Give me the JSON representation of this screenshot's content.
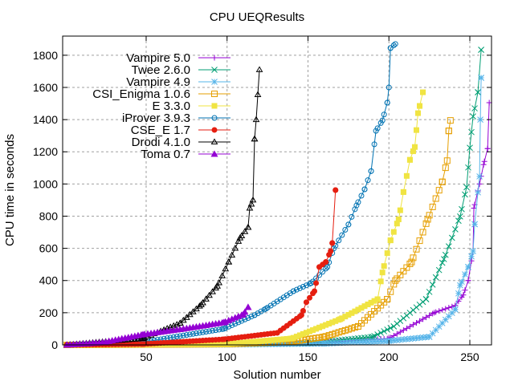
{
  "chart_data": {
    "type": "line",
    "title": "CPU UEQResults",
    "xlabel": "Solution number",
    "ylabel": "CPU time in seconds",
    "xlim": [
      -1.6,
      263.4
    ],
    "ylim": [
      0,
      1919
    ],
    "xticks": [
      50,
      100,
      150,
      200,
      250
    ],
    "yticks": [
      0,
      200,
      400,
      600,
      800,
      1000,
      1200,
      1400,
      1600,
      1800
    ],
    "grid": true,
    "legend_position": "top-left",
    "series": [
      {
        "name": "Vampire 5.0",
        "color": "#9400d3",
        "marker": "plus",
        "points": [
          [
            1,
            0
          ],
          [
            100,
            3
          ],
          [
            150,
            10
          ],
          [
            200,
            40
          ],
          [
            228,
            200
          ],
          [
            241,
            245
          ],
          [
            246,
            310
          ],
          [
            249,
            400
          ],
          [
            252,
            583
          ],
          [
            252.5,
            850
          ],
          [
            256,
            1000
          ],
          [
            258.5,
            1120
          ],
          [
            261,
            1220
          ],
          [
            262,
            1505
          ]
        ]
      },
      {
        "name": "Twee 2.6.0",
        "color": "#009e73",
        "marker": "cross",
        "points": [
          [
            1,
            0
          ],
          [
            100,
            3
          ],
          [
            150,
            10
          ],
          [
            190,
            50
          ],
          [
            203,
            115
          ],
          [
            223,
            284
          ],
          [
            234,
            533
          ],
          [
            244,
            798
          ],
          [
            248,
            980
          ],
          [
            250,
            1225
          ],
          [
            252,
            1420
          ],
          [
            255,
            1570
          ],
          [
            257,
            1834
          ]
        ]
      },
      {
        "name": "Vampire 4.9",
        "color": "#56b4e9",
        "marker": "star",
        "points": [
          [
            1,
            0
          ],
          [
            100,
            2
          ],
          [
            160,
            8
          ],
          [
            200,
            25
          ],
          [
            225,
            50
          ],
          [
            241,
            220
          ],
          [
            244,
            370
          ],
          [
            249,
            484
          ],
          [
            252,
            583
          ],
          [
            253,
            750
          ],
          [
            256,
            1047
          ],
          [
            256.5,
            1400
          ],
          [
            257,
            1660
          ]
        ]
      },
      {
        "name": "CSI_Enigma 1.0.6",
        "color": "#e69f00",
        "marker": "open-square",
        "points": [
          [
            1,
            0
          ],
          [
            100,
            5
          ],
          [
            140,
            20
          ],
          [
            160,
            50
          ],
          [
            181,
            115
          ],
          [
            199,
            284
          ],
          [
            204,
            400
          ],
          [
            214,
            515
          ],
          [
            224,
            780
          ],
          [
            233,
            1013
          ],
          [
            236,
            1145
          ],
          [
            237,
            1330
          ],
          [
            238,
            1395
          ]
        ]
      },
      {
        "name": "E 3.3.0",
        "color": "#f0e442",
        "marker": "filled-square",
        "points": [
          [
            1,
            0
          ],
          [
            100,
            5
          ],
          [
            140,
            40
          ],
          [
            170,
            160
          ],
          [
            193,
            284
          ],
          [
            196,
            450
          ],
          [
            201,
            650
          ],
          [
            206,
            780
          ],
          [
            209,
            950
          ],
          [
            213,
            1150
          ],
          [
            216,
            1230
          ],
          [
            218,
            1440
          ],
          [
            219,
            1485
          ],
          [
            221,
            1570
          ]
        ]
      },
      {
        "name": "iProver 3.9.3",
        "color": "#0072b2",
        "marker": "open-circle",
        "points": [
          [
            1,
            0
          ],
          [
            53,
            25
          ],
          [
            98,
            100
          ],
          [
            117,
            185
          ],
          [
            124,
            225
          ],
          [
            141,
            334
          ],
          [
            152,
            384
          ],
          [
            162,
            484
          ],
          [
            166,
            600
          ],
          [
            175,
            748
          ],
          [
            180,
            867
          ],
          [
            185,
            967
          ],
          [
            189,
            1080
          ],
          [
            192,
            1330
          ],
          [
            196,
            1395
          ],
          [
            199,
            1505
          ],
          [
            200,
            1600
          ],
          [
            201,
            1845
          ],
          [
            204,
            1870
          ]
        ]
      },
      {
        "name": "CSE_E 1.7",
        "color": "#e51e10",
        "marker": "filled-circle",
        "points": [
          [
            1,
            0
          ],
          [
            48,
            5
          ],
          [
            98,
            35
          ],
          [
            131,
            75
          ],
          [
            146,
            185
          ],
          [
            149,
            265
          ],
          [
            154,
            334
          ],
          [
            157,
            484
          ],
          [
            161,
            515
          ],
          [
            164,
            583
          ],
          [
            165,
            633
          ],
          [
            167,
            962
          ]
        ]
      },
      {
        "name": "Drodi 4.1.0",
        "color": "#000000",
        "marker": "open-triangle",
        "points": [
          [
            1,
            0
          ],
          [
            48,
            40
          ],
          [
            71,
            135
          ],
          [
            84,
            250
          ],
          [
            94,
            365
          ],
          [
            101,
            515
          ],
          [
            108,
            665
          ],
          [
            113,
            730
          ],
          [
            114,
            850
          ],
          [
            116,
            900
          ],
          [
            117,
            1280
          ],
          [
            118,
            1400
          ],
          [
            120,
            1710
          ]
        ]
      },
      {
        "name": "Toma 0.7",
        "color": "#9400d3",
        "marker": "filled-triangle",
        "points": [
          [
            1,
            0
          ],
          [
            23,
            15
          ],
          [
            48,
            65
          ],
          [
            73,
            100
          ],
          [
            98,
            140
          ],
          [
            110,
            190
          ],
          [
            113,
            234
          ]
        ]
      }
    ]
  }
}
